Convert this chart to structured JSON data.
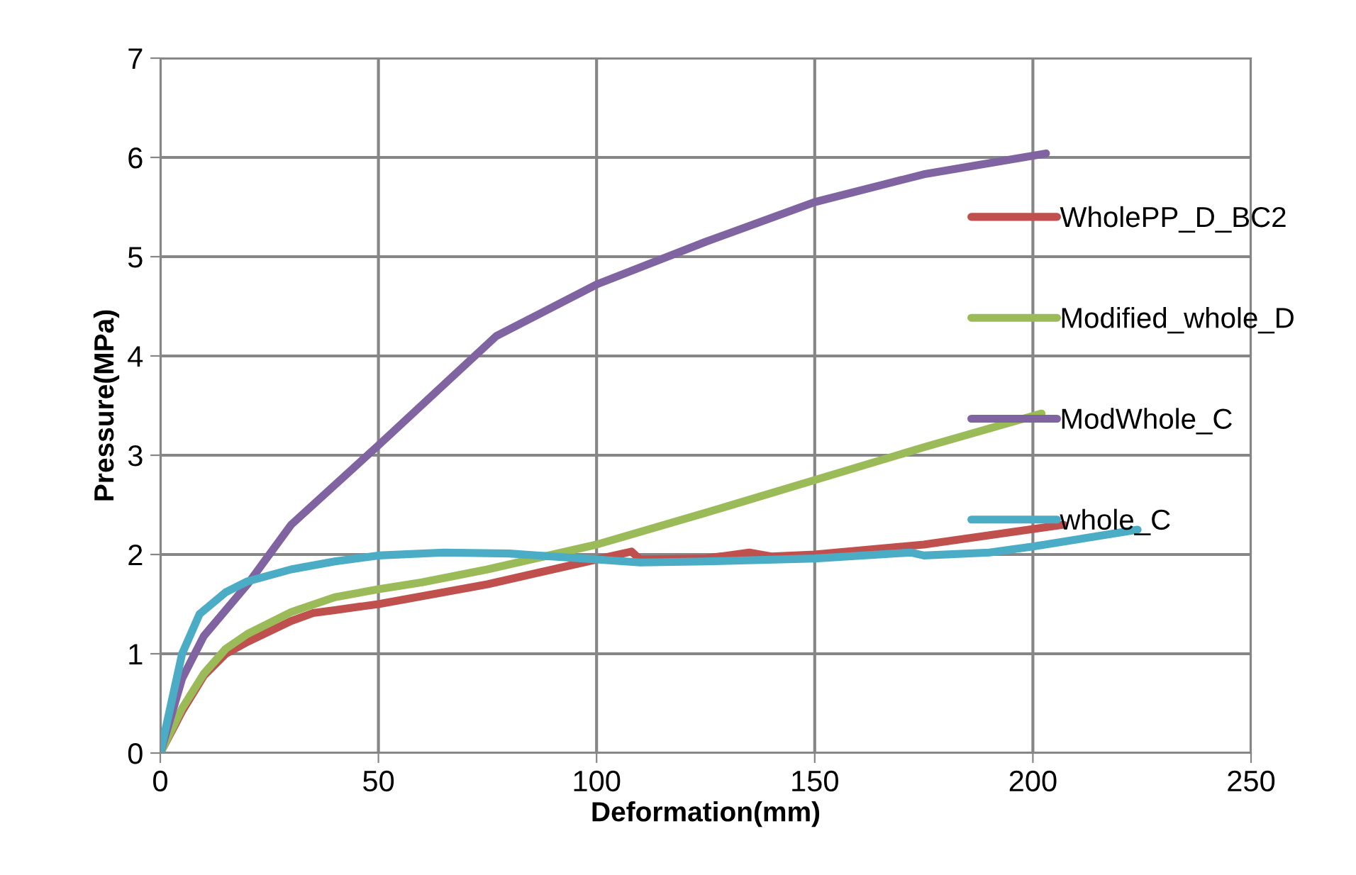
{
  "chart_data": {
    "type": "line",
    "xlabel": "Deformation(mm)",
    "ylabel": "Pressure(MPa)",
    "xlim": [
      0,
      250
    ],
    "xticks": [
      0,
      50,
      100,
      150,
      200,
      250
    ],
    "ylim": [
      0,
      7
    ],
    "yticks": [
      0,
      1,
      2,
      3,
      4,
      5,
      6,
      7
    ],
    "grid": true,
    "legend": "right",
    "marker": "none",
    "line_style": "solid",
    "series": [
      {
        "name": "WholePP_D_BC2",
        "color": "#c0504d",
        "x": [
          0,
          5,
          10,
          15,
          20,
          30,
          35,
          40,
          50,
          75,
          100,
          108,
          110,
          125,
          135,
          140,
          150,
          175,
          207
        ],
        "values": [
          0,
          0.42,
          0.78,
          1.0,
          1.12,
          1.33,
          1.41,
          1.44,
          1.5,
          1.7,
          1.95,
          2.03,
          1.95,
          1.96,
          2.02,
          1.98,
          2.0,
          2.1,
          2.3
        ]
      },
      {
        "name": "Modified_whole_D",
        "color": "#9bbb59",
        "x": [
          0,
          5,
          10,
          15,
          20,
          30,
          40,
          50,
          60,
          75,
          100,
          125,
          150,
          175,
          202
        ],
        "values": [
          0,
          0.45,
          0.8,
          1.05,
          1.2,
          1.42,
          1.57,
          1.65,
          1.72,
          1.85,
          2.1,
          2.42,
          2.75,
          3.08,
          3.42
        ]
      },
      {
        "name": "ModWhole_C",
        "color": "#8064a2",
        "x": [
          0,
          5,
          10,
          20,
          30,
          50,
          77,
          100,
          125,
          150,
          175,
          203
        ],
        "values": [
          0,
          0.75,
          1.18,
          1.7,
          2.3,
          3.1,
          4.2,
          4.72,
          5.15,
          5.55,
          5.83,
          6.04
        ]
      },
      {
        "name": "whole_C",
        "color": "#4bacc6",
        "x": [
          0,
          3,
          5,
          9,
          15,
          20,
          30,
          40,
          50,
          65,
          80,
          100,
          110,
          125,
          150,
          172,
          175,
          190,
          200,
          224
        ],
        "values": [
          0,
          0.6,
          1.0,
          1.4,
          1.62,
          1.73,
          1.85,
          1.93,
          1.99,
          2.02,
          2.01,
          1.95,
          1.92,
          1.93,
          1.96,
          2.02,
          1.99,
          2.02,
          2.08,
          2.25
        ]
      }
    ]
  }
}
